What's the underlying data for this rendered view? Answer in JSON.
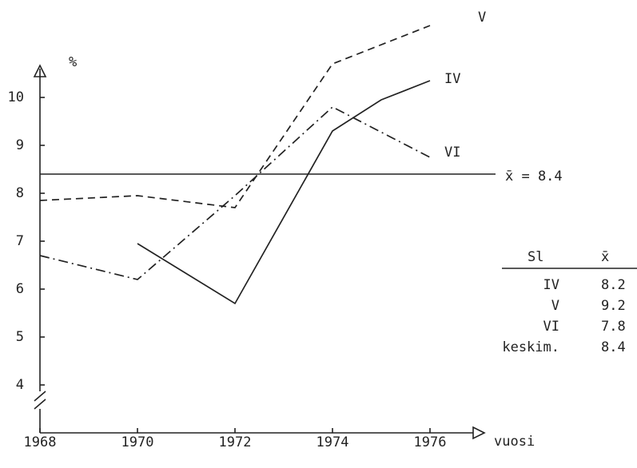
{
  "chart_data": {
    "type": "line",
    "y_unit": "%",
    "x_label": "vuosi",
    "xlim": [
      1968,
      1977
    ],
    "xticks": [
      1968,
      1970,
      1972,
      1974,
      1976
    ],
    "ylim": [
      3,
      11.6
    ],
    "yticks": [
      4,
      5,
      6,
      7,
      8,
      9,
      10
    ],
    "grid": false,
    "series": [
      {
        "name": "IV",
        "color": "#222222",
        "dash": "solid",
        "x": [
          1970,
          1972,
          1974,
          1975,
          1976
        ],
        "values": [
          6.95,
          5.7,
          9.3,
          9.95,
          10.35
        ]
      },
      {
        "name": "V",
        "color": "#222222",
        "dash": "dashed",
        "x": [
          1968,
          1970,
          1972,
          1974,
          1976
        ],
        "values": [
          7.85,
          7.95,
          7.7,
          10.7,
          11.5
        ]
      },
      {
        "name": "VI",
        "color": "#222222",
        "dash": "dashdot",
        "x": [
          1968,
          1970,
          1972,
          1974,
          1976
        ],
        "values": [
          6.7,
          6.2,
          7.95,
          9.8,
          8.75
        ]
      }
    ],
    "mean_line": {
      "value": 8.4,
      "label": "x̄ = 8.4"
    },
    "table": {
      "header": [
        "Sl",
        "x̄"
      ],
      "rows": [
        [
          "IV",
          8.2
        ],
        [
          "V",
          9.2
        ],
        [
          "VI",
          7.8
        ],
        [
          "keskim.",
          8.4
        ]
      ]
    }
  }
}
